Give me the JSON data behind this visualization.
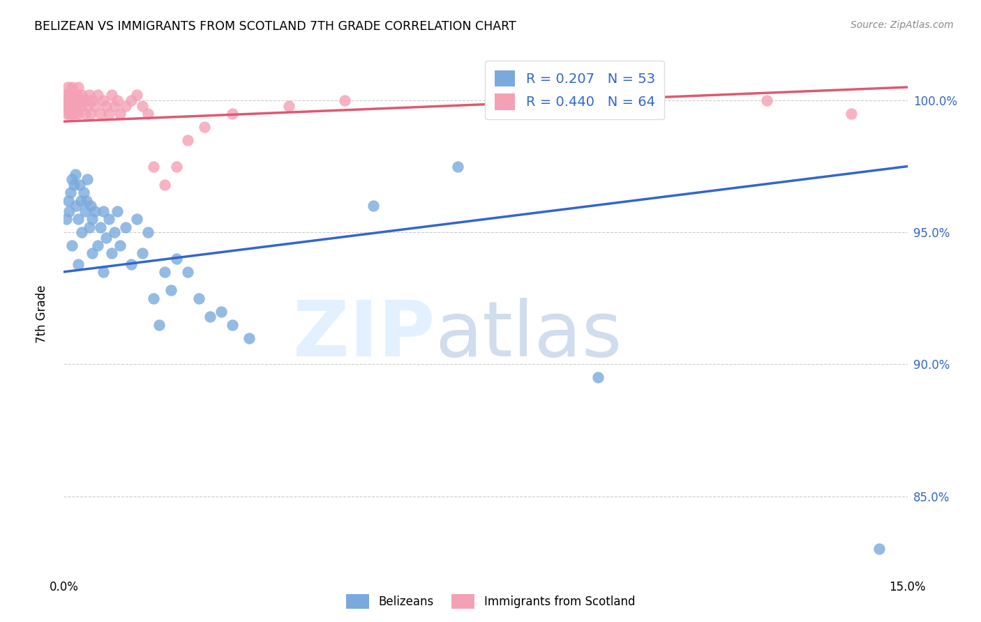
{
  "title": "BELIZEAN VS IMMIGRANTS FROM SCOTLAND 7TH GRADE CORRELATION CHART",
  "source": "Source: ZipAtlas.com",
  "ylabel": "7th Grade",
  "xmin": 0.0,
  "xmax": 15.0,
  "ymin": 82.0,
  "ymax": 101.8,
  "ytick_vals": [
    85.0,
    90.0,
    95.0,
    100.0
  ],
  "ytick_labels": [
    "85.0%",
    "90.0%",
    "95.0%",
    "100.0%"
  ],
  "xtick_vals": [
    0.0,
    15.0
  ],
  "xtick_labels": [
    "0.0%",
    "15.0%"
  ],
  "blue_R": 0.207,
  "blue_N": 53,
  "pink_R": 0.44,
  "pink_N": 64,
  "blue_label": "Belizeans",
  "pink_label": "Immigrants from Scotland",
  "blue_color": "#7aaadd",
  "pink_color": "#f4a0b5",
  "blue_line_color": "#3366cc",
  "pink_line_color": "#e05870",
  "grid_color": "#cccccc",
  "blue_line_y0": 93.5,
  "blue_line_y1": 97.5,
  "pink_line_y0": 99.2,
  "pink_line_y1": 100.5,
  "blue_x": [
    0.05,
    0.08,
    0.1,
    0.12,
    0.15,
    0.18,
    0.2,
    0.22,
    0.25,
    0.28,
    0.3,
    0.32,
    0.35,
    0.38,
    0.4,
    0.42,
    0.45,
    0.48,
    0.5,
    0.55,
    0.6,
    0.65,
    0.7,
    0.75,
    0.8,
    0.85,
    0.9,
    0.95,
    1.0,
    1.1,
    1.2,
    1.3,
    1.4,
    1.5,
    1.6,
    1.7,
    1.8,
    1.9,
    2.0,
    2.2,
    2.4,
    2.6,
    2.8,
    3.0,
    3.3,
    5.5,
    7.0,
    9.5,
    14.5,
    0.15,
    0.25,
    0.5,
    0.7
  ],
  "blue_y": [
    95.5,
    96.2,
    95.8,
    96.5,
    97.0,
    96.8,
    97.2,
    96.0,
    95.5,
    96.8,
    96.2,
    95.0,
    96.5,
    95.8,
    96.2,
    97.0,
    95.2,
    96.0,
    95.5,
    95.8,
    94.5,
    95.2,
    95.8,
    94.8,
    95.5,
    94.2,
    95.0,
    95.8,
    94.5,
    95.2,
    93.8,
    95.5,
    94.2,
    95.0,
    92.5,
    91.5,
    93.5,
    92.8,
    94.0,
    93.5,
    92.5,
    91.8,
    92.0,
    91.5,
    91.0,
    96.0,
    97.5,
    89.5,
    83.0,
    94.5,
    93.8,
    94.2,
    93.5
  ],
  "pink_x": [
    0.02,
    0.04,
    0.05,
    0.06,
    0.07,
    0.08,
    0.09,
    0.1,
    0.11,
    0.12,
    0.13,
    0.14,
    0.15,
    0.16,
    0.17,
    0.18,
    0.19,
    0.2,
    0.22,
    0.24,
    0.25,
    0.26,
    0.28,
    0.3,
    0.32,
    0.35,
    0.38,
    0.4,
    0.42,
    0.45,
    0.48,
    0.5,
    0.55,
    0.6,
    0.65,
    0.7,
    0.75,
    0.8,
    0.85,
    0.9,
    0.95,
    1.0,
    1.1,
    1.2,
    1.3,
    1.4,
    1.5,
    1.6,
    1.8,
    2.0,
    2.2,
    2.5,
    3.0,
    4.0,
    5.0,
    12.5,
    14.0,
    0.06,
    0.08,
    0.1,
    0.12,
    0.14,
    0.16,
    0.18
  ],
  "pink_y": [
    99.8,
    100.2,
    100.0,
    99.8,
    100.5,
    100.2,
    100.0,
    99.5,
    100.2,
    100.0,
    99.8,
    100.5,
    99.5,
    100.0,
    99.8,
    100.2,
    99.5,
    100.0,
    99.8,
    100.2,
    100.5,
    99.5,
    100.0,
    99.8,
    100.2,
    100.0,
    99.5,
    100.0,
    99.8,
    100.2,
    99.5,
    100.0,
    99.8,
    100.2,
    99.5,
    100.0,
    99.8,
    99.5,
    100.2,
    99.8,
    100.0,
    99.5,
    99.8,
    100.0,
    100.2,
    99.8,
    99.5,
    97.5,
    96.8,
    97.5,
    98.5,
    99.0,
    99.5,
    99.8,
    100.0,
    100.0,
    99.5,
    99.5,
    100.0,
    99.8,
    100.2,
    99.5,
    100.0,
    99.8
  ]
}
